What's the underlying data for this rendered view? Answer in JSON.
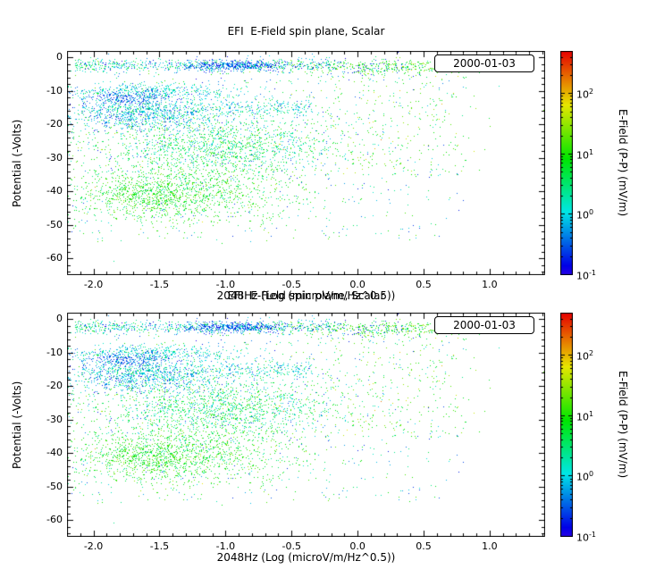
{
  "figure": {
    "background": "#ffffff",
    "text_color": "#000000",
    "axis_color": "#000000"
  },
  "chart_data": [
    {
      "type": "scatter",
      "title": "EFI  E-Field spin plane, Scalar",
      "annotation": "2000-01-03",
      "xlabel": "2048Hz (Log (microV/m/Hz^0.5))",
      "ylabel": "Potential (-Volts)",
      "xlim": [
        -2.2,
        1.42
      ],
      "ylim": [
        -65,
        2
      ],
      "xticks": [
        -2.0,
        -1.5,
        -1.0,
        -0.5,
        0.0,
        0.5,
        1.0
      ],
      "xtick_labels": [
        "-2.0",
        "-1.5",
        "-1.0",
        "-0.5",
        "0.0",
        "0.5",
        "1.0"
      ],
      "yticks": [
        0,
        -10,
        -20,
        -30,
        -40,
        -50,
        -60
      ],
      "ytick_labels": [
        "0",
        "-10",
        "-20",
        "-30",
        "-40",
        "-50",
        "-60"
      ],
      "grid": false,
      "legend": "none",
      "colorbar": {
        "label": "E-Field (P-P) (mV/m)",
        "scale": "log",
        "log_range": [
          -1,
          2.7
        ],
        "tick_values": [
          100,
          10,
          1,
          0.1
        ],
        "mantissa": "10",
        "tick_exponents": [
          "2",
          "1",
          "0",
          "-1"
        ]
      }
    },
    {
      "type": "scatter",
      "title": "EFI  E-Field spin plane, Scalar",
      "annotation": "2000-01-03",
      "xlabel": "2048Hz (Log (microV/m/Hz^0.5))",
      "ylabel": "Potential (-Volts)",
      "xlim": [
        -2.2,
        1.42
      ],
      "ylim": [
        -65,
        2
      ],
      "xticks": [
        -2.0,
        -1.5,
        -1.0,
        -0.5,
        0.0,
        0.5,
        1.0
      ],
      "xtick_labels": [
        "-2.0",
        "-1.5",
        "-1.0",
        "-0.5",
        "0.0",
        "0.5",
        "1.0"
      ],
      "yticks": [
        0,
        -10,
        -20,
        -30,
        -40,
        -50,
        -60
      ],
      "ytick_labels": [
        "0",
        "-10",
        "-20",
        "-30",
        "-40",
        "-50",
        "-60"
      ],
      "grid": false,
      "legend": "none",
      "colorbar": {
        "label": "E-Field (P-P) (mV/m)",
        "scale": "log",
        "log_range": [
          -1,
          2.7
        ],
        "tick_values": [
          100,
          10,
          1,
          0.1
        ],
        "mantissa": "10",
        "tick_exponents": [
          "2",
          "1",
          "0",
          "-1"
        ]
      }
    }
  ],
  "scatter_model": {
    "seed": 20000103,
    "point_color_scale": {
      "type": "rainbow",
      "hue_max": 250,
      "log_min": -1,
      "log_max": 2.7
    },
    "clusters": [
      {
        "n": 550,
        "dist": "unn",
        "x": [
          -2.15,
          -0.2
        ],
        "y": [
          -2.2,
          1.0
        ],
        "v": [
          0.3,
          0.5
        ]
      },
      {
        "n": 300,
        "dist": "nnn",
        "x": [
          0.2,
          0.3
        ],
        "y": [
          -2.6,
          1.2
        ],
        "v": [
          1.0,
          0.35
        ]
      },
      {
        "n": 400,
        "dist": "nnn",
        "x": [
          -0.95,
          0.18
        ],
        "y": [
          -2.2,
          0.7
        ],
        "v": [
          -0.45,
          0.3
        ]
      },
      {
        "n": 200,
        "dist": "unn",
        "x": [
          -2.1,
          0.4
        ],
        "y": [
          -2.4,
          1.2
        ],
        "v": [
          -0.5,
          0.3
        ]
      },
      {
        "n": 450,
        "dist": "nnn",
        "x": [
          -1.55,
          0.35
        ],
        "y": [
          -10,
          1.2
        ],
        "v": [
          0.05,
          0.3
        ]
      },
      {
        "n": 500,
        "dist": "unn",
        "x": [
          -2.1,
          -0.35
        ],
        "y": [
          -15,
          1.3
        ],
        "v": [
          0.1,
          0.35
        ]
      },
      {
        "n": 600,
        "dist": "nnn",
        "x": [
          -1.65,
          0.3
        ],
        "y": [
          -17.5,
          2.2
        ],
        "v": [
          -0.15,
          0.4
        ]
      },
      {
        "n": 250,
        "dist": "nnn",
        "x": [
          -1.75,
          0.18
        ],
        "y": [
          -12,
          1.0
        ],
        "v": [
          -0.5,
          0.25
        ]
      },
      {
        "n": 1500,
        "dist": "nnn",
        "x": [
          -1.05,
          0.5
        ],
        "y": [
          -26,
          4.5
        ],
        "v": [
          0.55,
          0.45
        ]
      },
      {
        "n": 1300,
        "dist": "nnn",
        "x": [
          -1.35,
          0.45
        ],
        "y": [
          -40,
          5
        ],
        "v": [
          0.85,
          0.35
        ]
      },
      {
        "n": 300,
        "dist": "nnn",
        "x": [
          -1.6,
          0.2
        ],
        "y": [
          -41,
          2.5
        ],
        "v": [
          0.95,
          0.25
        ]
      },
      {
        "n": 700,
        "dist": "uuu",
        "x": [
          -2.2,
          0.8
        ],
        "y": [
          -55,
          -1
        ],
        "v": [
          -0.8,
          1.3
        ]
      },
      {
        "n": 250,
        "dist": "nun",
        "x": [
          0.3,
          0.35
        ],
        "y": [
          -35,
          -2
        ],
        "v": [
          1.1,
          0.4
        ]
      }
    ]
  }
}
